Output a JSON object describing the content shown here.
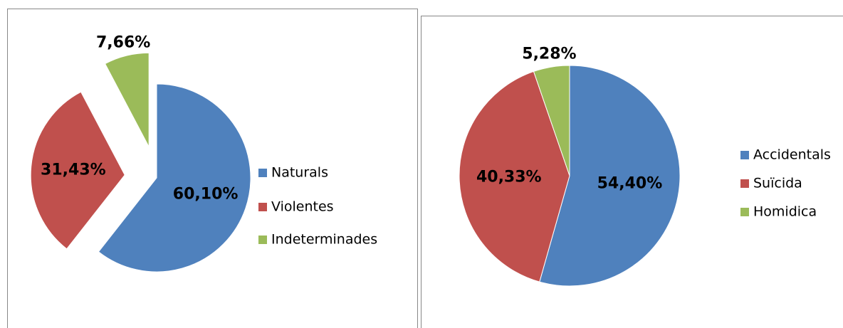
{
  "chart_data": [
    {
      "type": "pie",
      "categories": [
        "Naturals",
        "Violentes",
        "Indeterminades"
      ],
      "values": [
        60.1,
        31.43,
        7.66
      ],
      "value_labels": [
        "60,10%",
        "31,43%",
        "7,66%"
      ],
      "colors": [
        "#4f81bd",
        "#c0504d",
        "#9bbb59"
      ],
      "exploded": [
        false,
        true,
        true
      ]
    },
    {
      "type": "pie",
      "categories": [
        "Accidentals",
        "Suïcida",
        "Homidica"
      ],
      "values": [
        54.4,
        40.33,
        5.28
      ],
      "value_labels": [
        "54,40%",
        "40,33%",
        "5,28%"
      ],
      "colors": [
        "#4f81bd",
        "#c0504d",
        "#9bbb59"
      ],
      "exploded": [
        false,
        false,
        false
      ]
    }
  ]
}
